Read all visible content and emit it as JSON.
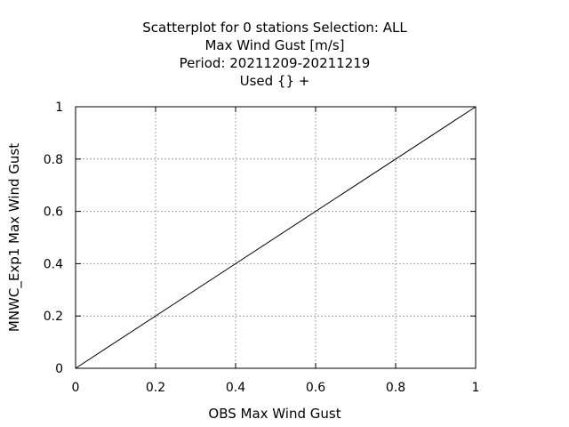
{
  "chart_data": {
    "type": "scatter",
    "title_lines": [
      "Scatterplot for    0 stations Selection: ALL",
      "Max Wind Gust [m/s]",
      "Period: 20211209-20211219",
      "Used {} +"
    ],
    "xlabel": "OBS Max Wind Gust",
    "ylabel": "MNWC_Exp1 Max Wind Gust",
    "xlim": [
      0,
      1
    ],
    "ylim": [
      0,
      1
    ],
    "x_ticks": [
      "0",
      "0.2",
      "0.4",
      "0.6",
      "0.8",
      "1"
    ],
    "y_ticks": [
      "0",
      "0.2",
      "0.4",
      "0.6",
      "0.8",
      "1"
    ],
    "grid": true,
    "series": [
      {
        "values": []
      }
    ],
    "reference_line": {
      "x": [
        0,
        1
      ],
      "y": [
        0,
        1
      ]
    }
  }
}
